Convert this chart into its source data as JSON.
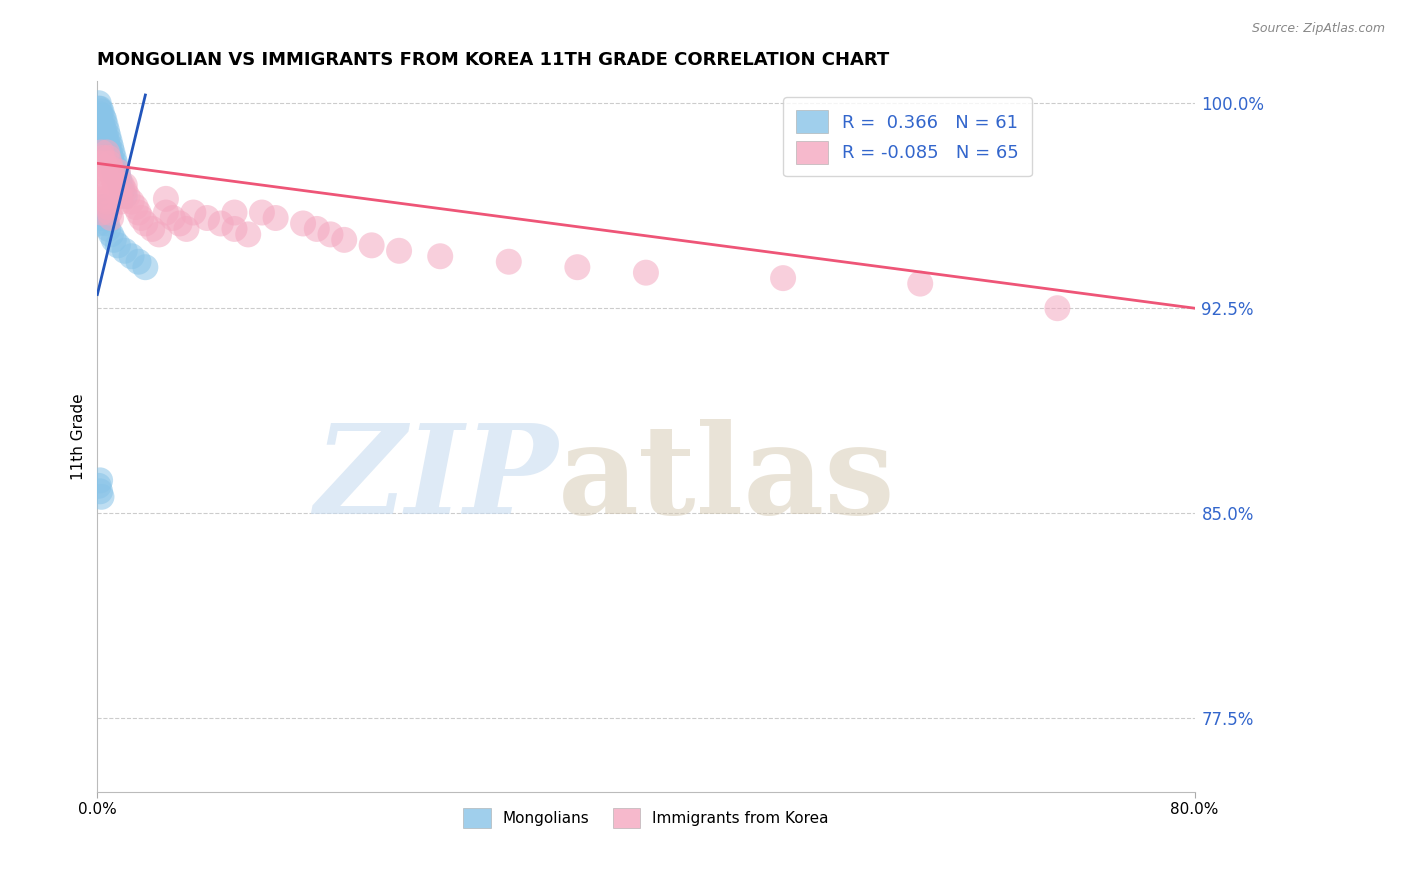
{
  "title": "MONGOLIAN VS IMMIGRANTS FROM KOREA 11TH GRADE CORRELATION CHART",
  "source": "Source: ZipAtlas.com",
  "mongolian_R": 0.366,
  "mongolian_N": 61,
  "korean_R": -0.085,
  "korean_N": 65,
  "mongolian_color": "#89C4E8",
  "korean_color": "#F4A8C0",
  "mongolian_line_color": "#2255BB",
  "korean_line_color": "#EE5577",
  "background_color": "#FFFFFF",
  "grid_color": "#CCCCCC",
  "xlim": [
    0.0,
    0.8
  ],
  "ylim": [
    0.748,
    1.008
  ],
  "yticks": [
    1.0,
    0.925,
    0.85,
    0.775
  ],
  "ytick_labels": [
    "100.0%",
    "92.5%",
    "85.0%",
    "77.5%"
  ],
  "xtick_labels": [
    "0.0%",
    "80.0%"
  ],
  "legend_fontsize": 13,
  "title_fontsize": 13,
  "mongolian_x": [
    0.001,
    0.001,
    0.001,
    0.002,
    0.002,
    0.002,
    0.002,
    0.003,
    0.003,
    0.003,
    0.004,
    0.004,
    0.004,
    0.005,
    0.005,
    0.005,
    0.006,
    0.006,
    0.006,
    0.007,
    0.007,
    0.007,
    0.008,
    0.008,
    0.009,
    0.009,
    0.01,
    0.01,
    0.011,
    0.011,
    0.012,
    0.012,
    0.013,
    0.013,
    0.014,
    0.015,
    0.016,
    0.017,
    0.018,
    0.02,
    0.001,
    0.001,
    0.002,
    0.003,
    0.004,
    0.004,
    0.005,
    0.006,
    0.007,
    0.008,
    0.01,
    0.012,
    0.015,
    0.02,
    0.025,
    0.03,
    0.035,
    0.001,
    0.002,
    0.003,
    0.002
  ],
  "mongolian_y": [
    1.0,
    0.998,
    0.995,
    0.998,
    0.996,
    0.993,
    0.99,
    0.997,
    0.993,
    0.989,
    0.995,
    0.991,
    0.987,
    0.994,
    0.99,
    0.986,
    0.992,
    0.988,
    0.984,
    0.99,
    0.986,
    0.982,
    0.988,
    0.984,
    0.986,
    0.982,
    0.984,
    0.98,
    0.982,
    0.978,
    0.98,
    0.976,
    0.978,
    0.974,
    0.976,
    0.974,
    0.972,
    0.97,
    0.968,
    0.966,
    0.96,
    0.956,
    0.958,
    0.96,
    0.962,
    0.958,
    0.96,
    0.958,
    0.956,
    0.954,
    0.952,
    0.95,
    0.948,
    0.946,
    0.944,
    0.942,
    0.94,
    0.86,
    0.858,
    0.856,
    0.862
  ],
  "korean_x": [
    0.001,
    0.002,
    0.003,
    0.003,
    0.004,
    0.004,
    0.005,
    0.005,
    0.006,
    0.006,
    0.007,
    0.007,
    0.008,
    0.008,
    0.009,
    0.009,
    0.01,
    0.01,
    0.011,
    0.012,
    0.013,
    0.014,
    0.015,
    0.016,
    0.017,
    0.018,
    0.02,
    0.022,
    0.025,
    0.028,
    0.03,
    0.032,
    0.035,
    0.04,
    0.045,
    0.05,
    0.055,
    0.06,
    0.065,
    0.07,
    0.08,
    0.09,
    0.1,
    0.11,
    0.12,
    0.13,
    0.15,
    0.16,
    0.17,
    0.18,
    0.2,
    0.22,
    0.25,
    0.3,
    0.35,
    0.4,
    0.5,
    0.6,
    0.7,
    0.003,
    0.005,
    0.01,
    0.02,
    0.05,
    0.1
  ],
  "korean_y": [
    0.978,
    0.975,
    0.982,
    0.972,
    0.98,
    0.97,
    0.978,
    0.968,
    0.976,
    0.966,
    0.982,
    0.964,
    0.98,
    0.962,
    0.978,
    0.96,
    0.976,
    0.958,
    0.974,
    0.972,
    0.97,
    0.968,
    0.975,
    0.966,
    0.964,
    0.97,
    0.968,
    0.966,
    0.964,
    0.962,
    0.96,
    0.958,
    0.956,
    0.954,
    0.952,
    0.96,
    0.958,
    0.956,
    0.954,
    0.96,
    0.958,
    0.956,
    0.954,
    0.952,
    0.96,
    0.958,
    0.956,
    0.954,
    0.952,
    0.95,
    0.948,
    0.946,
    0.944,
    0.942,
    0.94,
    0.938,
    0.936,
    0.934,
    0.925,
    0.96,
    0.965,
    0.975,
    0.97,
    0.965,
    0.96
  ],
  "mongo_line_x0": 0.0,
  "mongo_line_x1": 0.035,
  "mongo_line_y0": 0.93,
  "mongo_line_y1": 1.003,
  "korean_line_x0": 0.0,
  "korean_line_x1": 0.8,
  "korean_line_y0": 0.978,
  "korean_line_y1": 0.925
}
